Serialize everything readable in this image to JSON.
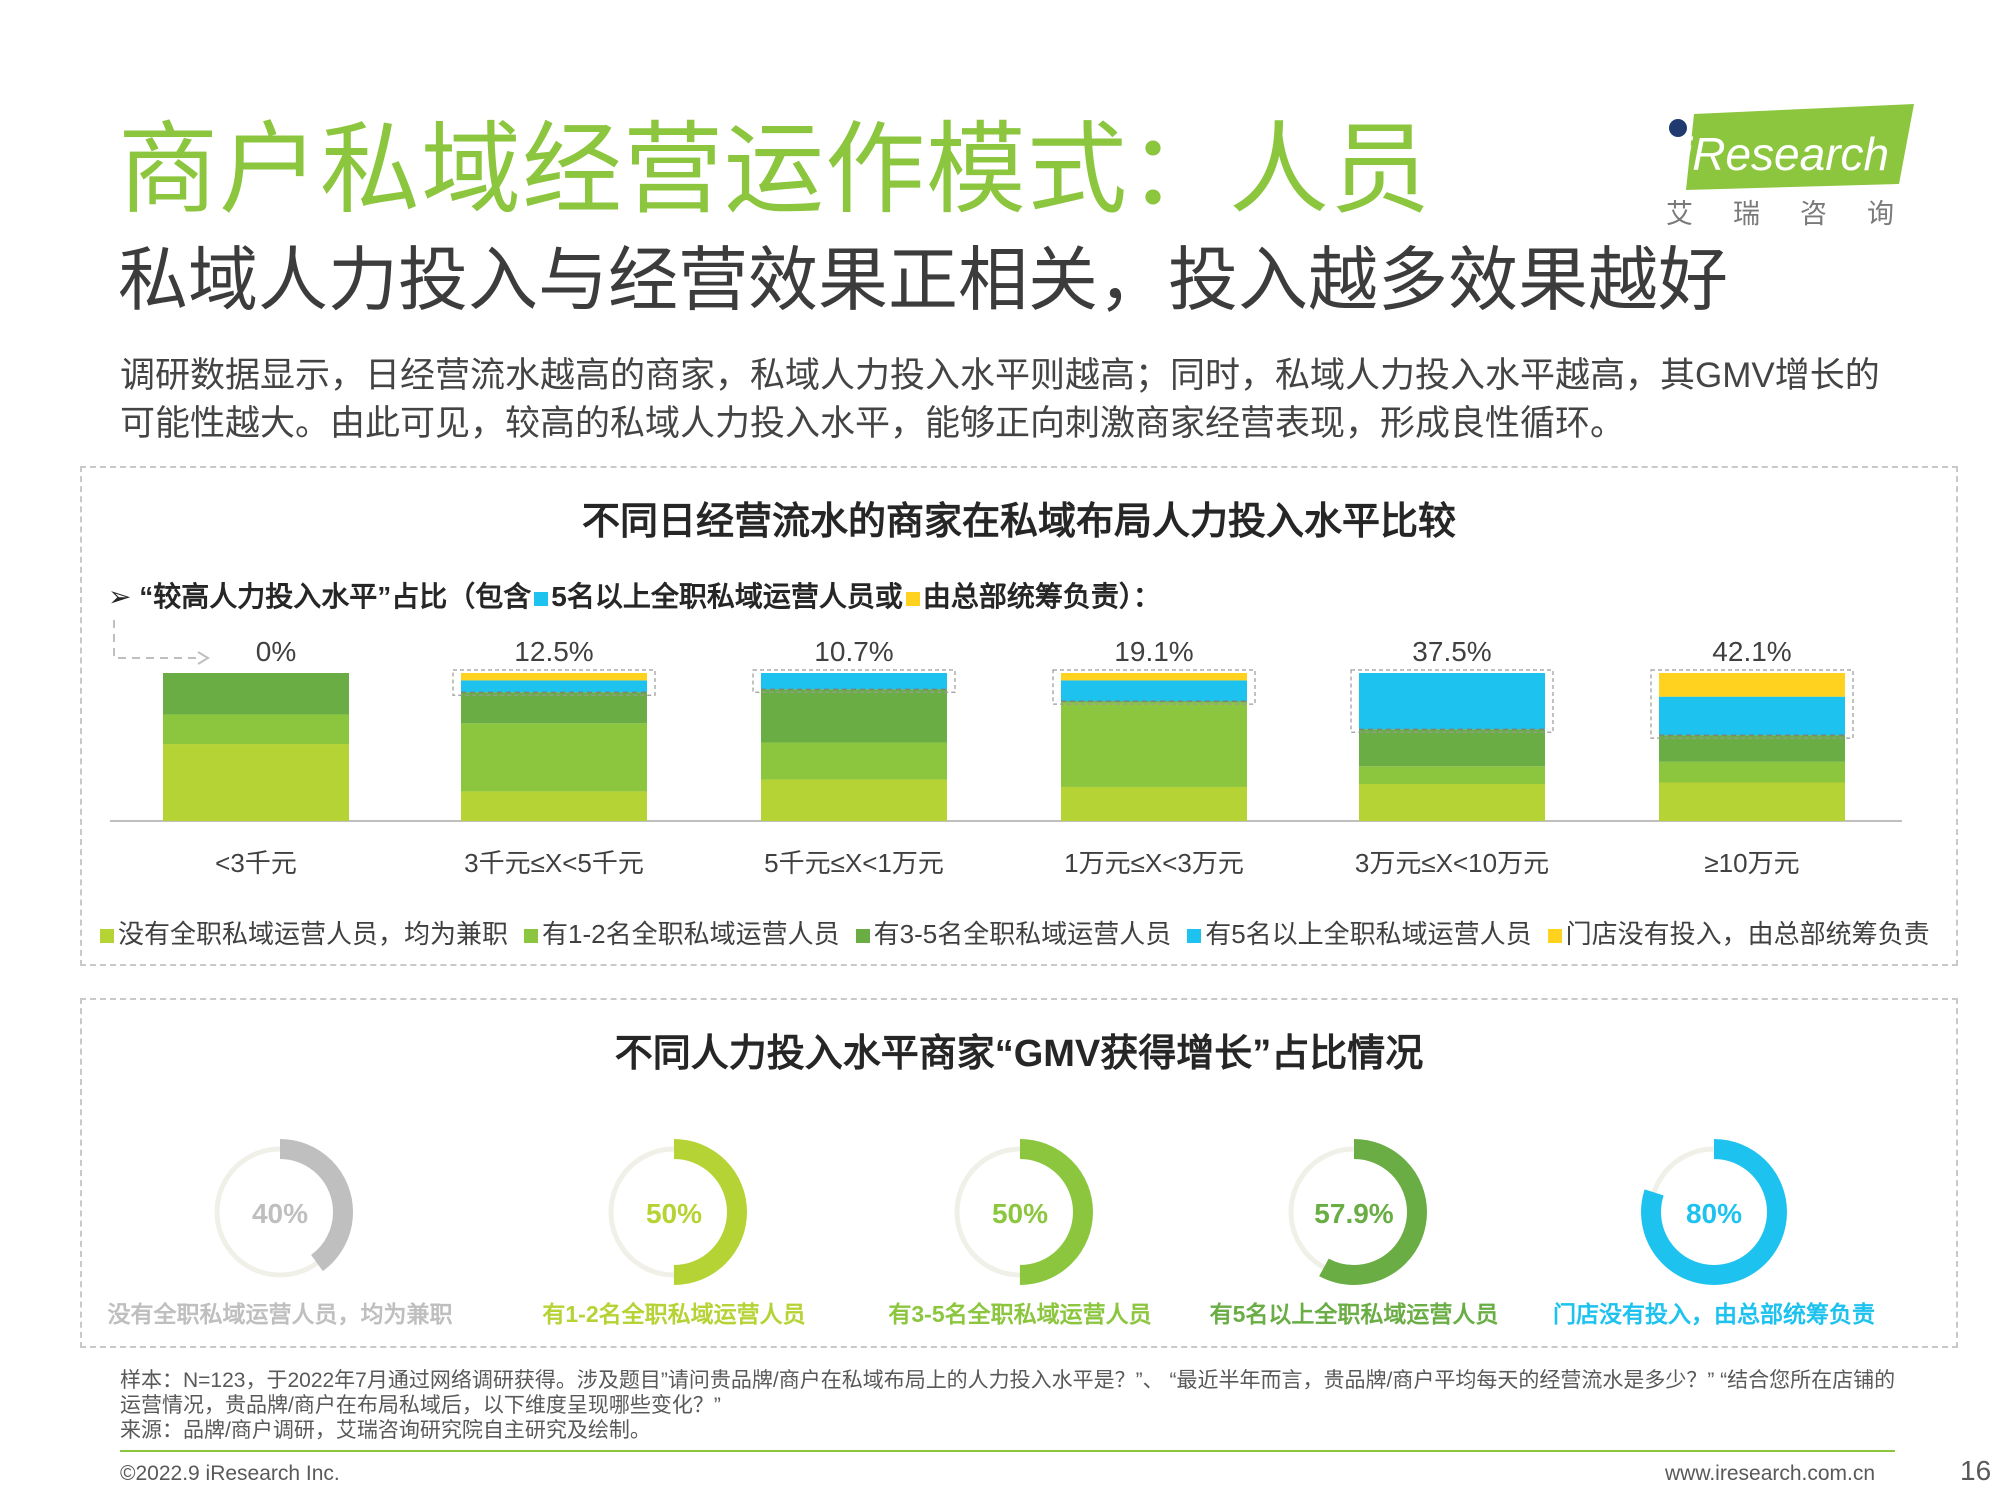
{
  "header": {
    "title": "商户私域经营运作模式：人员",
    "subtitle": "私域人力投入与经营效果正相关，投入越多效果越好",
    "intro": "调研数据显示，日经营流水越高的商家，私域人力投入水平则越高；同时，私域人力投入水平越高，其GMV增长的可能性越大。由此可见，较高的私域人力投入水平，能够正向刺激商家经营表现，形成良性循环。"
  },
  "logo": {
    "text": "iResearch",
    "cn": "艾瑞咨询",
    "color": "#8cc63f"
  },
  "colors": {
    "light_green": "#b5d334",
    "green": "#8cc63f",
    "dark_green": "#6aad45",
    "blue": "#1ec2ef",
    "yellow": "#ffd21f",
    "gray": "#bfbfbf"
  },
  "bar_section": {
    "title": "不同日经营流水的商家在私域布局人力投入水平比较",
    "subtitle_arrow": "➢",
    "subtitle_part1": "“较高人力投入水平”占比（包含",
    "subtitle_part2": "5名以上全职私域运营人员或",
    "subtitle_part3": "由总部统筹负责）："
  },
  "donut_section": {
    "title": "不同人力投入水平商家“GMV获得增长”占比情况"
  },
  "chart_data": [
    {
      "type": "bar",
      "stacked": true,
      "title": "不同日经营流水的商家在私域布局人力投入水平比较",
      "categories": [
        "<3千元",
        "3千元≤X<5千元",
        "5千元≤X<1万元",
        "1万元≤X<3万元",
        "3万元≤X<10万元",
        "≥10万元"
      ],
      "top_labels": [
        "0%",
        "12.5%",
        "10.7%",
        "19.1%",
        "37.5%",
        "42.1%"
      ],
      "series": [
        {
          "name": "没有全职私域运营人员，均为兼职",
          "color": "#b5d334",
          "values": [
            52,
            20,
            28,
            23,
            25,
            26
          ]
        },
        {
          "name": "有1-2名全职私域运营人员",
          "color": "#8cc63f",
          "values": [
            20,
            46,
            25,
            57,
            12,
            14
          ]
        },
        {
          "name": "有3-5名全职私域运营人员",
          "color": "#6aad45",
          "values": [
            28,
            21,
            36,
            1,
            25,
            18
          ]
        },
        {
          "name": "有5名以上全职私域运营人员",
          "color": "#1ec2ef",
          "values": [
            0,
            8,
            11,
            14,
            38,
            26
          ]
        },
        {
          "name": "门店没有投入，由总部统筹负责",
          "color": "#ffd21f",
          "values": [
            0,
            5,
            0,
            5,
            0,
            16
          ]
        }
      ],
      "ylim": [
        0,
        100
      ],
      "legend": "bottom"
    },
    {
      "type": "pie",
      "variant": "donut",
      "title": "不同人力投入水平商家“GMV获得增长”占比情况",
      "items": [
        {
          "label": "没有全职私域运营人员，均为兼职",
          "value": 40,
          "text": "40%",
          "color": "#bfbfbf"
        },
        {
          "label": "有1-2名全职私域运营人员",
          "value": 50,
          "text": "50%",
          "color": "#b5d334"
        },
        {
          "label": "有3-5名全职私域运营人员",
          "value": 50,
          "text": "50%",
          "color": "#8cc63f"
        },
        {
          "label": "有5名以上全职私域运营人员",
          "value": 57.9,
          "text": "57.9%",
          "color": "#6aad45"
        },
        {
          "label": "门店没有投入，由总部统筹负责",
          "value": 80,
          "text": "80%",
          "color": "#1ec2ef"
        }
      ]
    }
  ],
  "notes": {
    "sample": "样本：N=123，于2022年7月通过网络调研获得。涉及题目”请问贵品牌/商户在私域布局上的人力投入水平是？”、 “最近半年而言，贵品牌/商户平均每天的经营流水是多少？” “结合您所在店铺的运营情况，贵品牌/商户在布局私域后，以下维度呈现哪些变化？”",
    "source": "来源：品牌/商户调研，艾瑞咨询研究院自主研究及绘制。"
  },
  "footer": {
    "copyright": "©2022.9 iResearch Inc.",
    "website": "www.iresearch.com.cn",
    "page": "16"
  }
}
